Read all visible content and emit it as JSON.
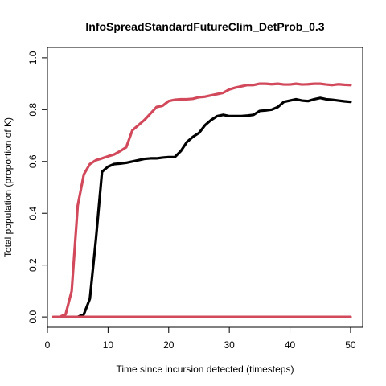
{
  "chart_data": {
    "type": "line",
    "title": "InfoSpreadStandardFutureClim_DetProb_0.3",
    "xlabel": "Time since incursion detected (timesteps)",
    "ylabel": "Total population (proportion of K)",
    "xlim": [
      0,
      52
    ],
    "ylim": [
      -0.04,
      1.04
    ],
    "xticks": [
      0,
      10,
      20,
      30,
      40,
      50
    ],
    "yticks": [
      0.0,
      0.2,
      0.4,
      0.6,
      0.8,
      1.0
    ],
    "xtick_labels": [
      "0",
      "10",
      "20",
      "30",
      "40",
      "50"
    ],
    "ytick_labels": [
      "0.0",
      "0.2",
      "0.4",
      "0.6",
      "0.8",
      "1.0"
    ],
    "grid": false,
    "legend": "none",
    "series": [
      {
        "color": "#000000",
        "x": [
          1,
          2,
          3,
          4,
          5,
          6,
          7,
          8,
          9,
          10,
          11,
          12,
          13,
          14,
          15,
          16,
          17,
          18,
          19,
          20,
          21,
          22,
          23,
          24,
          25,
          26,
          27,
          28,
          29,
          30,
          31,
          32,
          33,
          34,
          35,
          36,
          37,
          38,
          39,
          40,
          41,
          42,
          43,
          44,
          45,
          46,
          47,
          48,
          49,
          50
        ],
        "y": [
          0,
          0,
          0,
          0,
          0,
          0.01,
          0.07,
          0.3,
          0.56,
          0.58,
          0.59,
          0.592,
          0.595,
          0.6,
          0.605,
          0.61,
          0.612,
          0.612,
          0.615,
          0.617,
          0.617,
          0.64,
          0.675,
          0.695,
          0.71,
          0.74,
          0.76,
          0.775,
          0.78,
          0.775,
          0.775,
          0.775,
          0.777,
          0.78,
          0.795,
          0.797,
          0.8,
          0.81,
          0.83,
          0.835,
          0.84,
          0.835,
          0.833,
          0.84,
          0.845,
          0.84,
          0.838,
          0.835,
          0.832,
          0.83
        ]
      },
      {
        "color": "#d1495b",
        "x": [
          1,
          2,
          3,
          4,
          5,
          6,
          7,
          8,
          9,
          10,
          11,
          12,
          13,
          14,
          15,
          16,
          17,
          18,
          19,
          20,
          21,
          22,
          23,
          24,
          25,
          26,
          27,
          28,
          29,
          30,
          31,
          32,
          33,
          34,
          35,
          36,
          37,
          38,
          39,
          40,
          41,
          42,
          43,
          44,
          45,
          46,
          47,
          48,
          49,
          50
        ],
        "y": [
          0,
          0,
          0.01,
          0.1,
          0.43,
          0.55,
          0.59,
          0.605,
          0.612,
          0.62,
          0.627,
          0.64,
          0.655,
          0.72,
          0.74,
          0.76,
          0.785,
          0.81,
          0.815,
          0.833,
          0.838,
          0.84,
          0.84,
          0.842,
          0.848,
          0.85,
          0.855,
          0.86,
          0.865,
          0.878,
          0.885,
          0.89,
          0.895,
          0.895,
          0.9,
          0.9,
          0.898,
          0.9,
          0.897,
          0.897,
          0.9,
          0.897,
          0.898,
          0.9,
          0.9,
          0.897,
          0.895,
          0.898,
          0.896,
          0.895
        ]
      },
      {
        "color": "#d1495b",
        "x": [
          1,
          50
        ],
        "y": [
          0,
          0
        ]
      }
    ]
  }
}
